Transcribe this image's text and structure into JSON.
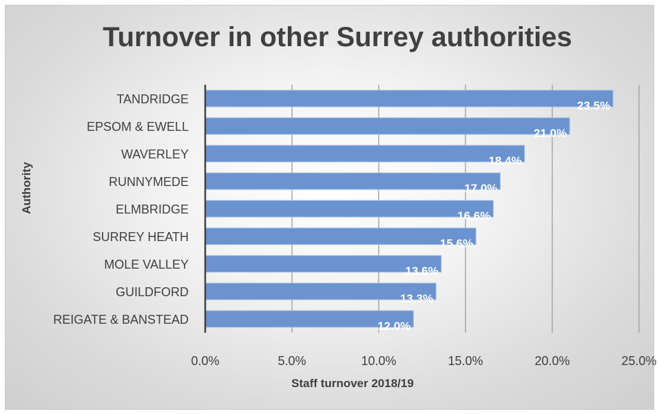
{
  "chart_data": {
    "type": "bar",
    "orientation": "horizontal",
    "title": "Turnover in other Surrey authorities",
    "xlabel": "Staff turnover 2018/19",
    "ylabel": "Authority",
    "categories": [
      "TANDRIDGE",
      "EPSOM & EWELL",
      "WAVERLEY",
      "RUNNYMEDE",
      "ELMBRIDGE",
      "SURREY HEATH",
      "MOLE VALLEY",
      "GUILDFORD",
      "REIGATE & BANSTEAD"
    ],
    "values": [
      23.5,
      21.0,
      18.4,
      17.0,
      16.6,
      15.6,
      13.6,
      13.3,
      12.0
    ],
    "data_labels": [
      "23.5%",
      "21.0%",
      "18.4%",
      "17.0%",
      "16.6%",
      "15.6%",
      "13.6%",
      "13.3%",
      "12.0%"
    ],
    "xlim": [
      0,
      25
    ],
    "x_ticks": [
      0,
      5,
      10,
      15,
      20,
      25
    ],
    "x_tick_labels": [
      "0.0%",
      "5.0%",
      "10.0%",
      "15.0%",
      "20.0%",
      "25.0%"
    ],
    "grid": "vertical",
    "legend": "none",
    "bar_color": "#6a93cf",
    "bar_edge_color": "#9fbce3",
    "grid_color": "#a6a6a6",
    "axis_color": "#404040"
  }
}
